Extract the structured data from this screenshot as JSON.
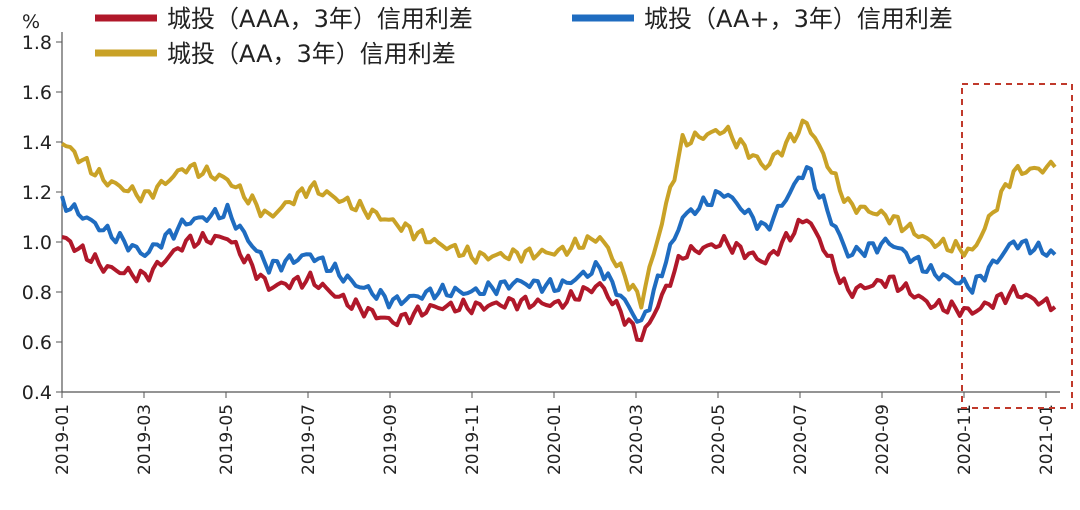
{
  "chart_data": {
    "type": "line",
    "ylabel": "%",
    "ylim": [
      0.4,
      1.8
    ],
    "yticks": [
      "0.4",
      "0.6",
      "0.8",
      "1.0",
      "1.2",
      "1.4",
      "1.6",
      "1.8"
    ],
    "xticks": [
      "2019-01",
      "2019-03",
      "2019-05",
      "2019-07",
      "2019-09",
      "2019-11",
      "2020-01",
      "2020-03",
      "2020-05",
      "2020-07",
      "2020-09",
      "2020-11",
      "2021-01"
    ],
    "grid": false,
    "legend_position": "top",
    "annotation": "dashed highlight box from 2020-11 to 2021-01",
    "highlight_range": [
      "2020-11",
      "2021-01"
    ],
    "x": [
      "2019-01",
      "2019-02",
      "2019-03",
      "2019-04",
      "2019-05",
      "2019-06",
      "2019-07",
      "2019-08",
      "2019-09",
      "2019-10",
      "2019-11",
      "2019-12",
      "2020-01",
      "2020-02",
      "2020-03",
      "2020-04",
      "2020-05",
      "2020-06",
      "2020-07",
      "2020-08",
      "2020-09",
      "2020-10",
      "2020-11",
      "2020-12",
      "2021-01"
    ],
    "series": [
      {
        "name": "城投（AAA，3年）信用利差",
        "color": "#b0182a",
        "values": [
          1.02,
          0.9,
          0.86,
          1.0,
          1.02,
          0.82,
          0.85,
          0.75,
          0.68,
          0.74,
          0.74,
          0.76,
          0.75,
          0.83,
          0.61,
          0.95,
          1.0,
          0.92,
          1.1,
          0.8,
          0.85,
          0.75,
          0.72,
          0.8,
          0.74
        ]
      },
      {
        "name": "城投（AA+，3年）信用利差",
        "color": "#1f6cc0",
        "values": [
          1.16,
          1.05,
          0.95,
          1.08,
          1.12,
          0.9,
          0.95,
          0.84,
          0.76,
          0.8,
          0.8,
          0.84,
          0.82,
          0.9,
          0.67,
          1.1,
          1.2,
          1.05,
          1.3,
          0.95,
          1.0,
          0.88,
          0.82,
          1.0,
          0.95
        ]
      },
      {
        "name": "城投（AA，3年）信用利差",
        "color": "#c9a227",
        "values": [
          1.4,
          1.25,
          1.18,
          1.3,
          1.25,
          1.1,
          1.22,
          1.15,
          1.08,
          1.0,
          0.94,
          0.95,
          0.96,
          1.02,
          0.76,
          1.4,
          1.45,
          1.3,
          1.48,
          1.15,
          1.1,
          1.0,
          0.96,
          1.28,
          1.3
        ]
      }
    ]
  }
}
